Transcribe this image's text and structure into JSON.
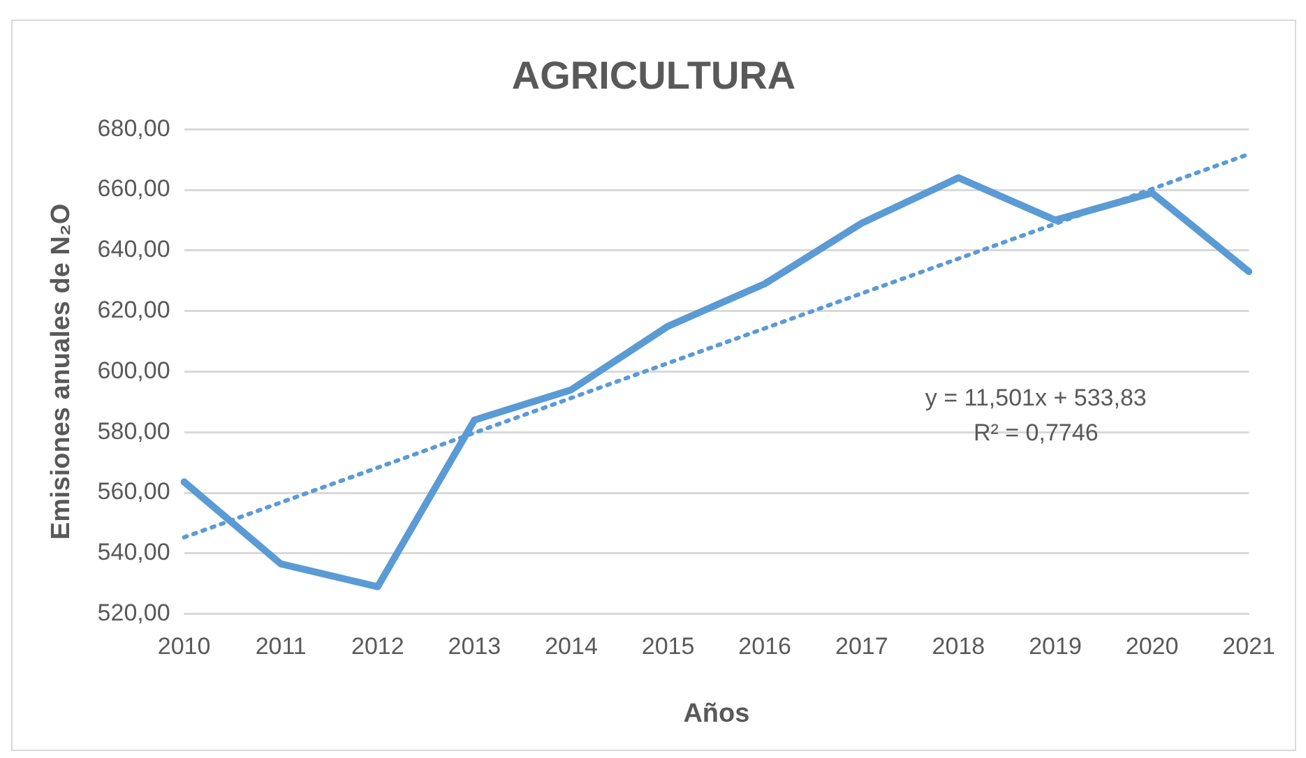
{
  "chart_data": {
    "type": "line",
    "title": "AGRICULTURA",
    "xlabel": "Años",
    "ylabel": "Emisiones anuales de N₂O",
    "categories": [
      "2010",
      "2011",
      "2012",
      "2013",
      "2014",
      "2015",
      "2016",
      "2017",
      "2018",
      "2019",
      "2020",
      "2021"
    ],
    "series": [
      {
        "color": "#5b9bd5",
        "line_style": "solid",
        "values": [
          563.6,
          536.5,
          529,
          584,
          594,
          615,
          629,
          649,
          664,
          650,
          659,
          633
        ]
      },
      {
        "color": "#5b9bd5",
        "line_style": "dotted",
        "values": [
          545.3,
          556.8,
          568.3,
          579.8,
          591.3,
          602.8,
          614.3,
          625.8,
          637.3,
          648.8,
          660.3,
          671.8
        ]
      }
    ],
    "ylim": [
      520,
      680
    ],
    "yticks": [
      {
        "value": 520,
        "label": "520,00"
      },
      {
        "value": 540,
        "label": "540,00"
      },
      {
        "value": 560,
        "label": "560,00"
      },
      {
        "value": 580,
        "label": "580,00"
      },
      {
        "value": 600,
        "label": "600,00"
      },
      {
        "value": 620,
        "label": "620,00"
      },
      {
        "value": 640,
        "label": "640,00"
      },
      {
        "value": 660,
        "label": "660,00"
      },
      {
        "value": 680,
        "label": "680,00"
      }
    ],
    "annotations": [
      "y = 11,501x + 533,83\nR² = 0,7746"
    ],
    "grid": "y",
    "legend": false,
    "marker": "none"
  }
}
